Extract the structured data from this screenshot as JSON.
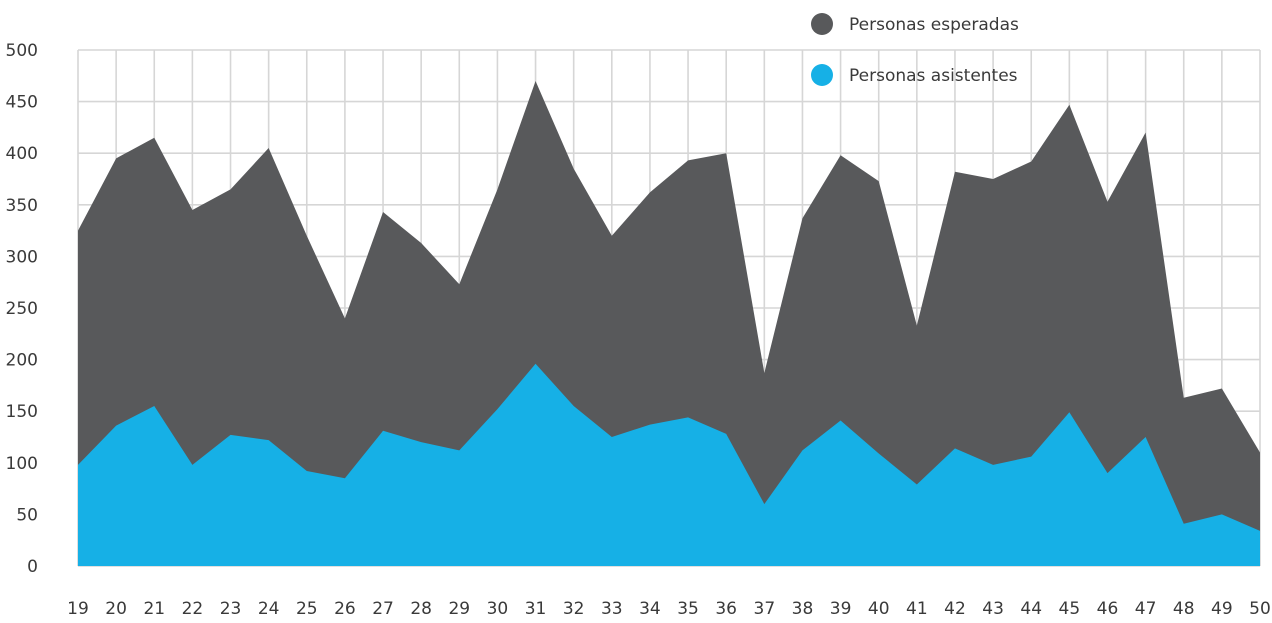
{
  "chart_data": {
    "type": "area",
    "x": [
      19,
      20,
      21,
      22,
      23,
      24,
      25,
      26,
      27,
      28,
      29,
      30,
      31,
      32,
      33,
      34,
      35,
      36,
      37,
      38,
      39,
      40,
      41,
      42,
      43,
      44,
      45,
      46,
      47,
      48,
      49,
      50
    ],
    "ylim": [
      0,
      500
    ],
    "yticks": [
      0,
      50,
      100,
      150,
      200,
      250,
      300,
      350,
      400,
      450,
      500
    ],
    "grid": true,
    "legend_position": "top-right",
    "series": [
      {
        "name": "Personas esperadas",
        "color": "#58595b",
        "values": [
          325,
          395,
          415,
          345,
          365,
          405,
          320,
          240,
          343,
          313,
          273,
          365,
          470,
          385,
          320,
          362,
          393,
          400,
          187,
          337,
          398,
          373,
          233,
          382,
          375,
          392,
          447,
          353,
          420,
          163,
          172,
          110
        ]
      },
      {
        "name": "Personas asistentes",
        "color": "#16b0e6",
        "values": [
          98,
          136,
          155,
          98,
          127,
          122,
          92,
          85,
          131,
          120,
          112,
          152,
          196,
          155,
          125,
          137,
          144,
          128,
          60,
          112,
          141,
          109,
          79,
          114,
          98,
          106,
          149,
          90,
          125,
          41,
          50,
          34
        ]
      }
    ]
  }
}
